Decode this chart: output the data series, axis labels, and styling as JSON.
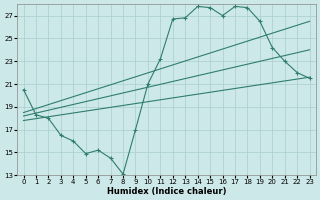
{
  "xlabel": "Humidex (Indice chaleur)",
  "background_color": "#cde8e8",
  "grid_color": "#aacece",
  "line_color": "#2e7d6e",
  "xlim": [
    -0.5,
    23.5
  ],
  "ylim": [
    13,
    28
  ],
  "yticks": [
    13,
    15,
    17,
    19,
    21,
    23,
    25,
    27
  ],
  "xticks": [
    0,
    1,
    2,
    3,
    4,
    5,
    6,
    7,
    8,
    9,
    10,
    11,
    12,
    13,
    14,
    15,
    16,
    17,
    18,
    19,
    20,
    21,
    22,
    23
  ],
  "series_max": {
    "x": [
      0,
      1,
      2,
      3,
      4,
      5,
      6,
      7,
      8,
      9,
      10,
      11,
      12,
      13,
      14,
      15,
      16,
      17,
      18,
      19,
      20,
      21,
      22,
      23
    ],
    "y": [
      20.5,
      18.3,
      18.0,
      16.5,
      16.0,
      14.9,
      15.2,
      14.5,
      13.1,
      17.0,
      21.0,
      23.2,
      26.7,
      26.8,
      27.8,
      27.7,
      27.0,
      27.8,
      27.7,
      26.5,
      24.2,
      23.0,
      22.0,
      21.5
    ]
  },
  "series_upper": {
    "x": [
      0,
      23
    ],
    "y": [
      18.5,
      26.5
    ]
  },
  "series_middle": {
    "x": [
      0,
      23
    ],
    "y": [
      18.2,
      24.0
    ]
  },
  "series_lower": {
    "x": [
      0,
      23
    ],
    "y": [
      17.8,
      21.6
    ]
  }
}
